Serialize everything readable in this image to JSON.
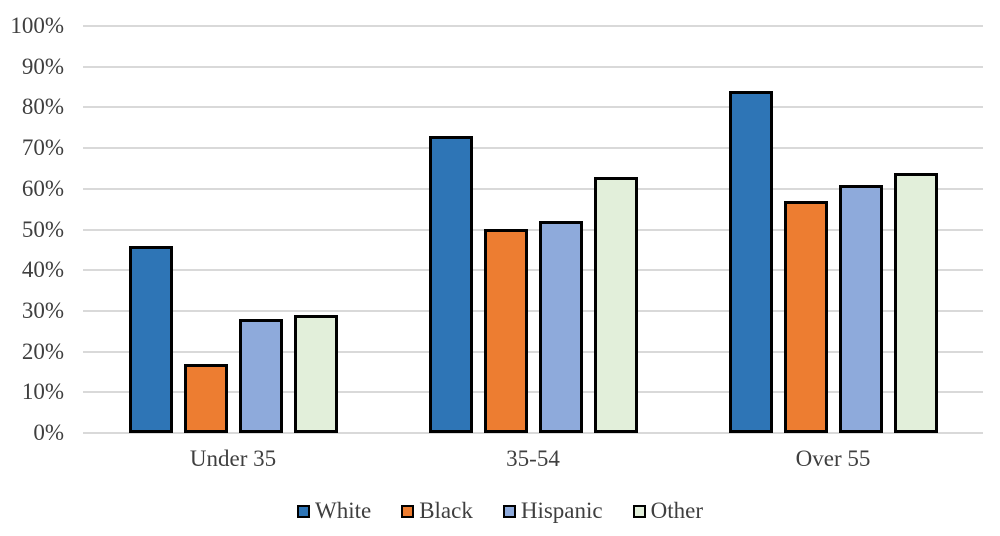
{
  "chart_data": {
    "type": "bar",
    "title": "",
    "categories": [
      "Under 35",
      "35-54",
      "Over 55"
    ],
    "series": [
      {
        "name": "White",
        "color": "#2E75B6",
        "values": [
          46,
          73,
          84
        ]
      },
      {
        "name": "Black",
        "color": "#ED7D31",
        "values": [
          17,
          50,
          57
        ]
      },
      {
        "name": "Hispanic",
        "color": "#8EAADB",
        "values": [
          28,
          52,
          61
        ]
      },
      {
        "name": "Other",
        "color": "#E2EFDA",
        "values": [
          29,
          63,
          64
        ]
      }
    ],
    "y_axis": {
      "min": 0,
      "max": 100,
      "step": 10,
      "unit": "%",
      "tick_labels": [
        "0%",
        "10%",
        "20%",
        "30%",
        "40%",
        "50%",
        "60%",
        "70%",
        "80%",
        "90%",
        "100%"
      ]
    },
    "xlabel": "",
    "ylabel": "",
    "ylim": [
      0,
      100
    ],
    "grid": true,
    "legend": {
      "position": "bottom",
      "entries": [
        "White",
        "Black",
        "Hispanic",
        "Other"
      ]
    },
    "colors": {
      "gridline": "#D9D9D9",
      "bar_border": "#000000",
      "text": "#3F3F3F",
      "background": "#FFFFFF"
    }
  }
}
